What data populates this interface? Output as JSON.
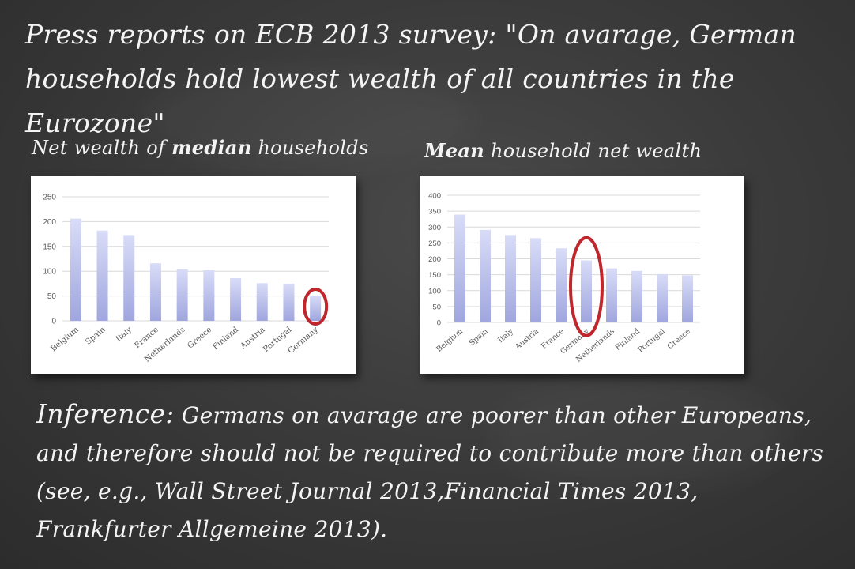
{
  "headline": "Press reports on ECB 2013 survey: \"On avarage, German households hold lowest wealth of all countries in the Eurozone\"",
  "left_title": {
    "plain": "Net wealth of ",
    "bold": "median",
    "rest": " households"
  },
  "right_title": {
    "bold": "Mean",
    "rest": " household net wealth"
  },
  "inference": {
    "lead": "Inference:",
    "text": " Germans on avarage are poorer than other Europeans, and therefore should not be required to contribute more than others (see, e.g., Wall Street Journal 2013,Financial Times 2013, Frankfurter Allgemeine 2013)."
  },
  "colors": {
    "bar_top": "#d9dcf7",
    "bar_bottom": "#9fa6de",
    "highlight": "#c0272d",
    "grid": "#d9d9d9",
    "tick": "#595959"
  },
  "chart_data": [
    {
      "type": "bar",
      "title": "Net wealth of median households",
      "categories": [
        "Belgium",
        "Spain",
        "Italy",
        "France",
        "Netherlands",
        "Greece",
        "Finland",
        "Austria",
        "Portugal",
        "Germany"
      ],
      "values": [
        206,
        182,
        173,
        116,
        104,
        102,
        86,
        76,
        75,
        51
      ],
      "ylim": [
        0,
        250
      ],
      "yticks": [
        0,
        50,
        100,
        150,
        200,
        250
      ],
      "grid": true,
      "highlight": "Germany"
    },
    {
      "type": "bar",
      "title": "Mean household net wealth",
      "categories": [
        "Belgium",
        "Spain",
        "Italy",
        "Austria",
        "France",
        "Germany",
        "Netherlands",
        "Finland",
        "Portugal",
        "Greece"
      ],
      "values": [
        339,
        291,
        275,
        265,
        233,
        195,
        170,
        162,
        152,
        148
      ],
      "ylim": [
        0,
        400
      ],
      "yticks": [
        0,
        50,
        100,
        150,
        200,
        250,
        300,
        350,
        400
      ],
      "grid": true,
      "highlight": "Germany"
    }
  ]
}
